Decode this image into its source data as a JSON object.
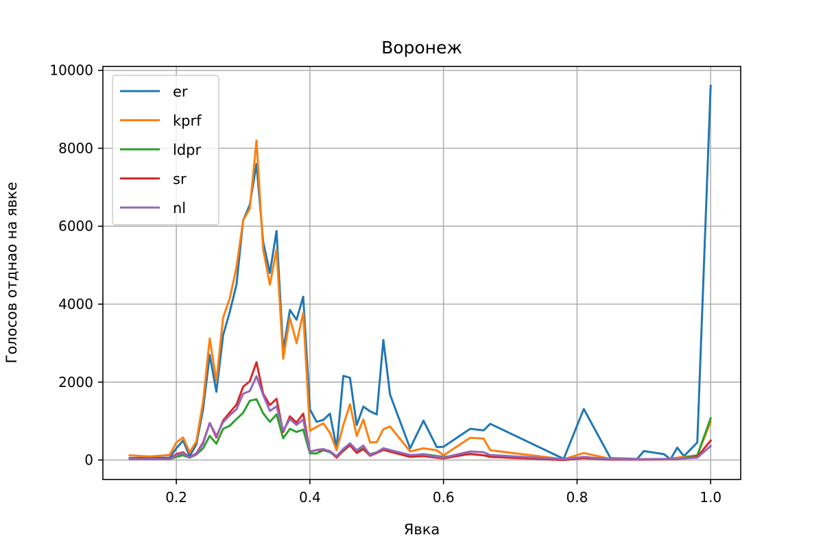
{
  "chart_data": {
    "type": "line",
    "title": "Воронеж",
    "xlabel": "Явка",
    "ylabel": "Голосов отднао на явке",
    "xlim": [
      0.09,
      1.045
    ],
    "ylim": [
      -500,
      10100
    ],
    "xticks": [
      0.2,
      0.4,
      0.6,
      0.8,
      1.0
    ],
    "xtick_labels": [
      "0.2",
      "0.4",
      "0.6",
      "0.8",
      "1.0"
    ],
    "yticks": [
      0,
      2000,
      4000,
      6000,
      8000,
      10000
    ],
    "ytick_labels": [
      "0",
      "2000",
      "4000",
      "6000",
      "8000",
      "10000"
    ],
    "grid": true,
    "legend_position": "top-left",
    "series": [
      {
        "name": "er",
        "color": "#1f77b4",
        "x": [
          0.13,
          0.19,
          0.2,
          0.21,
          0.22,
          0.23,
          0.24,
          0.25,
          0.26,
          0.27,
          0.28,
          0.29,
          0.3,
          0.31,
          0.32,
          0.33,
          0.34,
          0.35,
          0.36,
          0.37,
          0.38,
          0.39,
          0.4,
          0.41,
          0.42,
          0.43,
          0.44,
          0.45,
          0.46,
          0.47,
          0.48,
          0.49,
          0.5,
          0.51,
          0.52,
          0.55,
          0.57,
          0.59,
          0.6,
          0.64,
          0.66,
          0.67,
          0.78,
          0.81,
          0.85,
          0.89,
          0.9,
          0.93,
          0.94,
          0.95,
          0.96,
          0.98,
          1.0
        ],
        "y": [
          50,
          60,
          300,
          500,
          100,
          400,
          1300,
          2700,
          1750,
          3200,
          3800,
          4500,
          6150,
          6550,
          7600,
          5600,
          4800,
          5880,
          2800,
          3850,
          3600,
          4190,
          1300,
          980,
          1030,
          1190,
          300,
          2160,
          2110,
          900,
          1370,
          1250,
          1170,
          3080,
          1680,
          300,
          1010,
          330,
          340,
          800,
          760,
          930,
          30,
          1310,
          50,
          30,
          230,
          150,
          20,
          320,
          100,
          450,
          9600
        ]
      },
      {
        "name": "kprf",
        "color": "#ff7f0e",
        "x": [
          0.13,
          0.16,
          0.19,
          0.2,
          0.21,
          0.22,
          0.23,
          0.24,
          0.25,
          0.26,
          0.27,
          0.28,
          0.29,
          0.3,
          0.31,
          0.32,
          0.33,
          0.34,
          0.35,
          0.36,
          0.37,
          0.38,
          0.39,
          0.4,
          0.41,
          0.42,
          0.43,
          0.44,
          0.45,
          0.46,
          0.47,
          0.48,
          0.49,
          0.5,
          0.51,
          0.52,
          0.55,
          0.57,
          0.59,
          0.6,
          0.64,
          0.66,
          0.67,
          0.78,
          0.81,
          0.85,
          0.9,
          0.93,
          0.95,
          0.98,
          1.0
        ],
        "y": [
          120,
          90,
          130,
          450,
          580,
          200,
          480,
          1500,
          3120,
          2020,
          3650,
          4150,
          4950,
          6150,
          6450,
          8200,
          5400,
          4500,
          5400,
          2600,
          3650,
          3000,
          3780,
          750,
          850,
          940,
          700,
          250,
          900,
          1430,
          620,
          1040,
          450,
          460,
          790,
          860,
          220,
          300,
          250,
          120,
          570,
          550,
          250,
          20,
          180,
          30,
          20,
          20,
          60,
          120,
          980
        ]
      },
      {
        "name": "ldpr",
        "color": "#2ca02c",
        "x": [
          0.13,
          0.19,
          0.2,
          0.21,
          0.22,
          0.23,
          0.24,
          0.25,
          0.26,
          0.27,
          0.28,
          0.29,
          0.3,
          0.31,
          0.32,
          0.33,
          0.34,
          0.35,
          0.36,
          0.37,
          0.38,
          0.39,
          0.4,
          0.41,
          0.42,
          0.43,
          0.44,
          0.45,
          0.46,
          0.47,
          0.48,
          0.49,
          0.5,
          0.51,
          0.55,
          0.57,
          0.6,
          0.64,
          0.66,
          0.67,
          0.78,
          0.81,
          0.85,
          0.9,
          0.95,
          0.98,
          1.0
        ],
        "y": [
          20,
          20,
          80,
          120,
          60,
          140,
          300,
          620,
          420,
          800,
          880,
          1050,
          1210,
          1520,
          1560,
          1200,
          980,
          1170,
          560,
          800,
          720,
          780,
          170,
          170,
          250,
          200,
          80,
          230,
          380,
          200,
          300,
          150,
          200,
          300,
          120,
          150,
          80,
          150,
          120,
          100,
          10,
          60,
          10,
          20,
          20,
          120,
          1070
        ]
      },
      {
        "name": "sr",
        "color": "#d62728",
        "x": [
          0.13,
          0.19,
          0.2,
          0.21,
          0.22,
          0.23,
          0.24,
          0.25,
          0.26,
          0.27,
          0.28,
          0.29,
          0.3,
          0.31,
          0.32,
          0.33,
          0.34,
          0.35,
          0.36,
          0.37,
          0.38,
          0.39,
          0.4,
          0.41,
          0.42,
          0.43,
          0.44,
          0.45,
          0.46,
          0.47,
          0.48,
          0.49,
          0.5,
          0.51,
          0.55,
          0.57,
          0.6,
          0.64,
          0.66,
          0.67,
          0.78,
          0.81,
          0.85,
          0.9,
          0.95,
          0.98,
          1.0
        ],
        "y": [
          30,
          30,
          150,
          200,
          70,
          170,
          450,
          950,
          580,
          1010,
          1220,
          1420,
          1880,
          2020,
          2510,
          1700,
          1410,
          1570,
          720,
          1120,
          960,
          1190,
          220,
          250,
          270,
          230,
          60,
          250,
          380,
          180,
          280,
          110,
          180,
          260,
          80,
          100,
          40,
          160,
          120,
          80,
          0,
          50,
          10,
          10,
          20,
          80,
          500
        ]
      },
      {
        "name": "nl",
        "color": "#9467bd",
        "x": [
          0.13,
          0.19,
          0.2,
          0.21,
          0.22,
          0.23,
          0.24,
          0.25,
          0.26,
          0.27,
          0.28,
          0.29,
          0.3,
          0.31,
          0.32,
          0.33,
          0.34,
          0.35,
          0.36,
          0.37,
          0.38,
          0.39,
          0.4,
          0.41,
          0.42,
          0.43,
          0.44,
          0.45,
          0.46,
          0.47,
          0.48,
          0.49,
          0.5,
          0.51,
          0.55,
          0.57,
          0.6,
          0.64,
          0.66,
          0.67,
          0.78,
          0.81,
          0.85,
          0.9,
          0.95,
          0.98,
          1.0
        ],
        "y": [
          20,
          20,
          120,
          180,
          60,
          150,
          420,
          950,
          620,
          970,
          1150,
          1300,
          1700,
          1770,
          2150,
          1670,
          1260,
          1380,
          760,
          1050,
          900,
          1040,
          210,
          260,
          280,
          220,
          100,
          290,
          430,
          250,
          370,
          130,
          200,
          300,
          130,
          140,
          60,
          220,
          200,
          130,
          20,
          80,
          20,
          20,
          30,
          60,
          360
        ]
      }
    ]
  }
}
